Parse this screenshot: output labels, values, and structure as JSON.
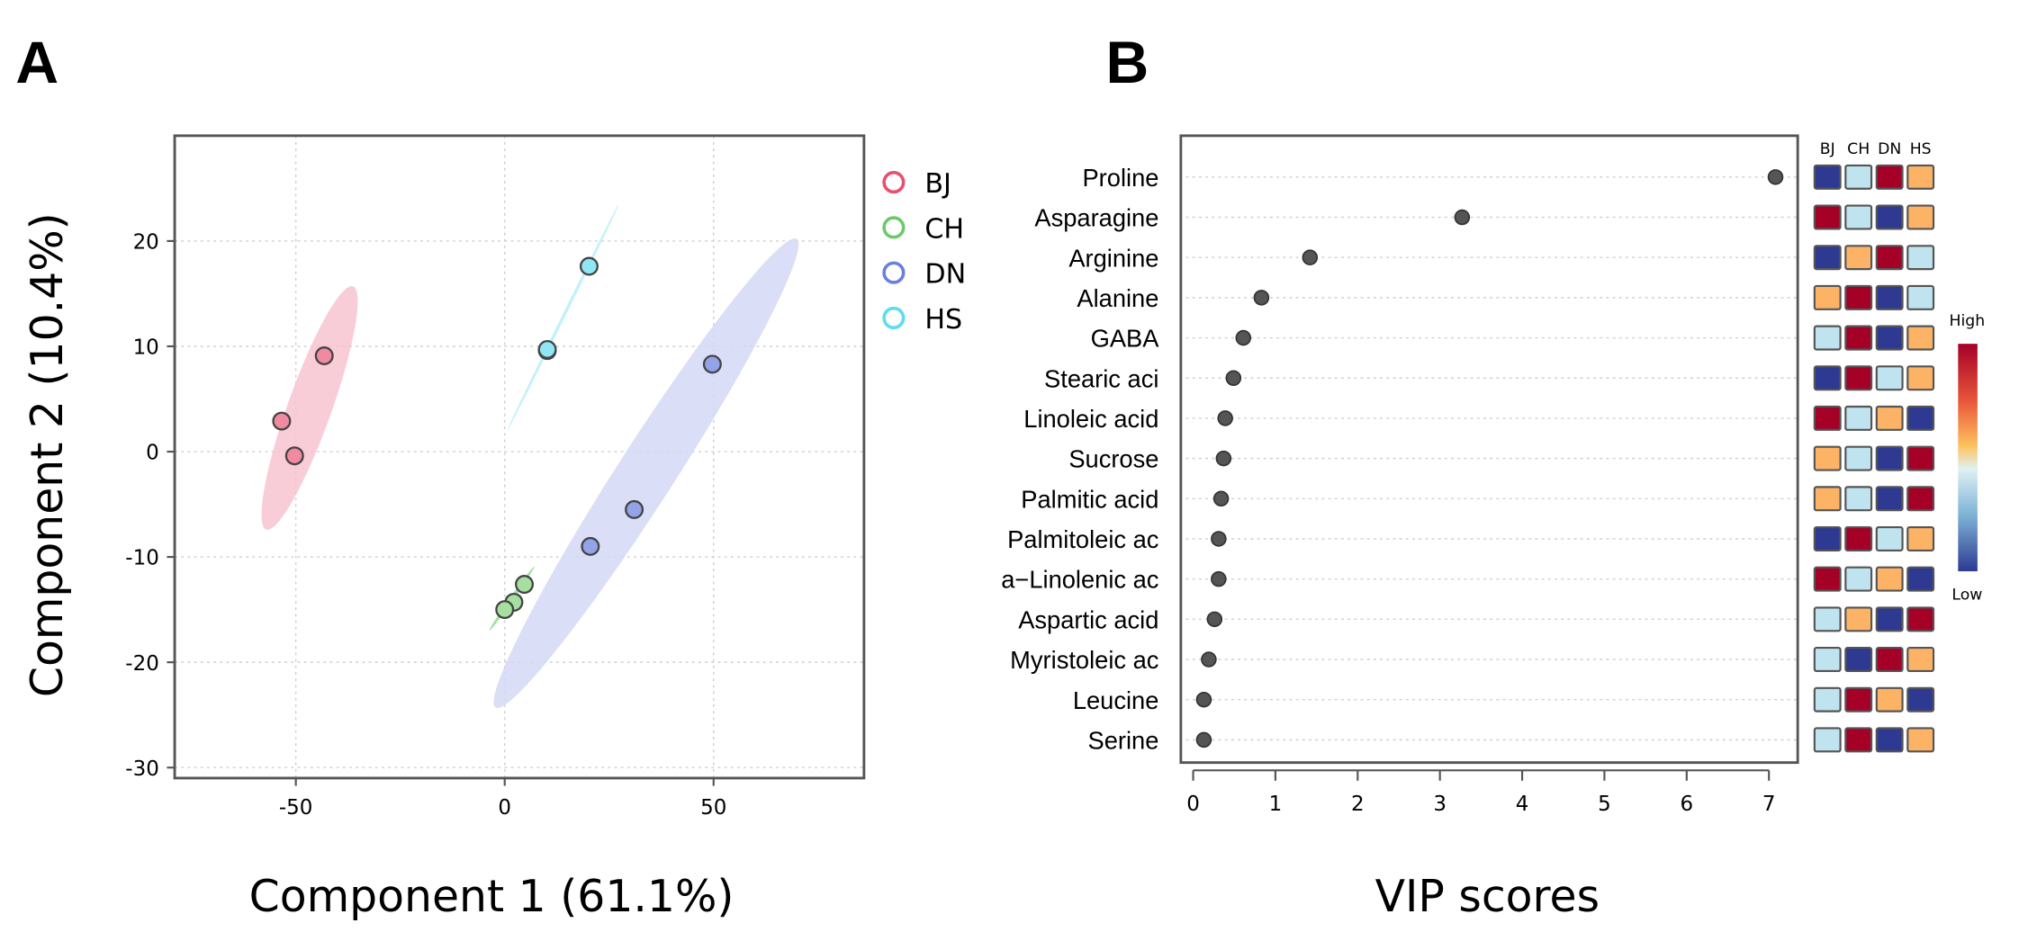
{
  "panels": {
    "a_label": "A",
    "b_label": "B"
  },
  "chart_data": [
    {
      "type": "scatter",
      "xlabel": "Component 1 (61.1%)",
      "ylabel": "Component 2 (10.4%)",
      "xlim": [
        -79,
        86
      ],
      "ylim": [
        -31,
        30
      ],
      "xticks": [
        -50,
        0,
        50
      ],
      "yticks": [
        -30,
        -20,
        -10,
        0,
        10,
        20
      ],
      "grid": true,
      "legend_position": "right",
      "series": [
        {
          "name": "BJ",
          "color": "#e8506f",
          "fill": "#f08aa0",
          "ellipse_color": "#f6c0cd",
          "points": [
            [
              -43.2,
              9.1
            ],
            [
              -53.4,
              2.9
            ],
            [
              -50.3,
              -0.4
            ]
          ]
        },
        {
          "name": "CH",
          "color": "#6cc96c",
          "fill": "#a6dfa0",
          "ellipse_color": "#9edc9a",
          "points": [
            [
              4.7,
              -12.6
            ],
            [
              2.2,
              -14.3
            ],
            [
              0.0,
              -15.0
            ]
          ]
        },
        {
          "name": "DN",
          "color": "#6a7fe0",
          "fill": "#93a3e8",
          "ellipse_color": "#d3d8f4",
          "points": [
            [
              49.7,
              8.3
            ],
            [
              31.0,
              -5.5
            ],
            [
              20.5,
              -9.0
            ]
          ]
        },
        {
          "name": "HS",
          "color": "#5fdcf0",
          "fill": "#8fe6f4",
          "ellipse_color": "#bdeffa",
          "points": [
            [
              20.2,
              17.6
            ],
            [
              10.2,
              9.6
            ],
            [
              10.2,
              9.7
            ]
          ]
        }
      ]
    },
    {
      "type": "dot",
      "xlabel": "VIP scores",
      "xlim": [
        -0.15,
        7.35
      ],
      "xticks": [
        0,
        1,
        2,
        3,
        4,
        5,
        6,
        7
      ],
      "grid": true,
      "categories": [
        "Proline",
        "Asparagine",
        "Arginine",
        "Alanine",
        "GABA",
        "Stearic aci",
        "Linoleic acid",
        "Sucrose",
        "Palmitic acid",
        "Palmitoleic ac",
        "a−Linolenic ac",
        "Aspartic acid",
        "Myristoleic ac",
        "Leucine",
        "Serine"
      ],
      "values": [
        7.08,
        3.27,
        1.42,
        0.83,
        0.61,
        0.49,
        0.39,
        0.37,
        0.34,
        0.31,
        0.31,
        0.26,
        0.19,
        0.13,
        0.13
      ],
      "heatmap": {
        "columns": [
          "BJ",
          "CH",
          "DN",
          "HS"
        ],
        "levels_note_colors": {
          "1": "#2e3a92",
          "2": "#bfe3ef",
          "3": "#fdb366",
          "4": "#a50026"
        },
        "levels": [
          [
            1,
            2,
            4,
            3
          ],
          [
            4,
            2,
            1,
            3
          ],
          [
            1,
            3,
            4,
            2
          ],
          [
            3,
            4,
            1,
            2
          ],
          [
            2,
            4,
            1,
            3
          ],
          [
            1,
            4,
            2,
            3
          ],
          [
            4,
            2,
            3,
            1
          ],
          [
            3,
            2,
            1,
            4
          ],
          [
            3,
            2,
            1,
            4
          ],
          [
            1,
            4,
            2,
            3
          ],
          [
            4,
            2,
            3,
            1
          ],
          [
            2,
            3,
            1,
            4
          ],
          [
            2,
            1,
            4,
            3
          ],
          [
            2,
            4,
            3,
            1
          ],
          [
            2,
            4,
            1,
            3
          ]
        ],
        "scale": {
          "high": "High",
          "low": "Low"
        }
      }
    }
  ]
}
